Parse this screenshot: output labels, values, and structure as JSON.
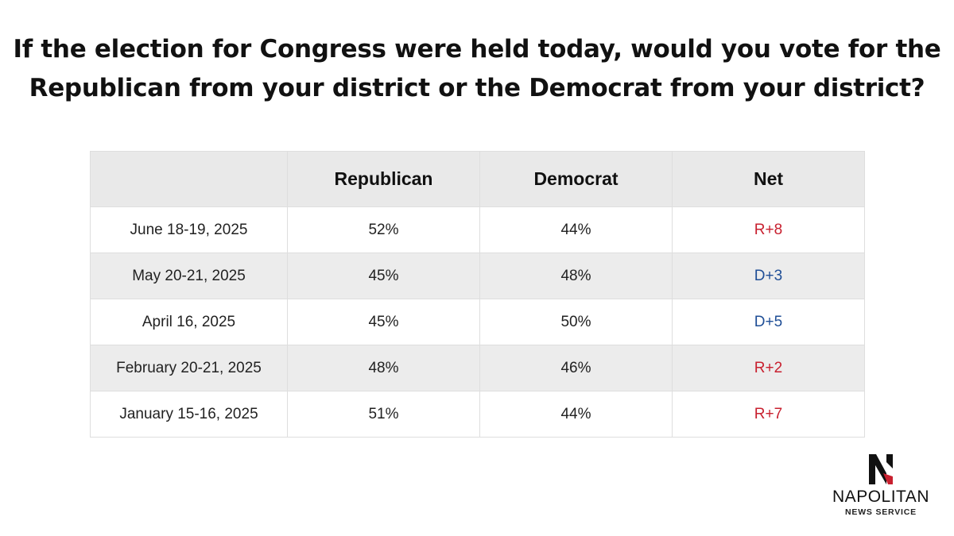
{
  "title": {
    "line1": "If the election for Congress were held today, would you vote for the",
    "line2": "Republican from your district or the Democrat from your district?"
  },
  "chart_data": {
    "type": "table",
    "columns": [
      "",
      "Republican",
      "Democrat",
      "Net"
    ],
    "rows": [
      {
        "date": "June 18-19, 2025",
        "republican": "52%",
        "democrat": "44%",
        "net": "R+8",
        "lean": "R"
      },
      {
        "date": "May 20-21, 2025",
        "republican": "45%",
        "democrat": "48%",
        "net": "D+3",
        "lean": "D"
      },
      {
        "date": "April 16, 2025",
        "republican": "45%",
        "democrat": "50%",
        "net": "D+5",
        "lean": "D"
      },
      {
        "date": "February 20-21, 2025",
        "republican": "48%",
        "democrat": "46%",
        "net": "R+2",
        "lean": "R"
      },
      {
        "date": "January 15-16, 2025",
        "republican": "51%",
        "democrat": "44%",
        "net": "R+7",
        "lean": "R"
      }
    ],
    "colors": {
      "republican_net": "#c8202f",
      "democrat_net": "#1f4e96"
    }
  },
  "logo": {
    "icon": "napolitan-n-logo-icon",
    "name": "NAPOLITAN",
    "subtitle": "NEWS SERVICE"
  }
}
